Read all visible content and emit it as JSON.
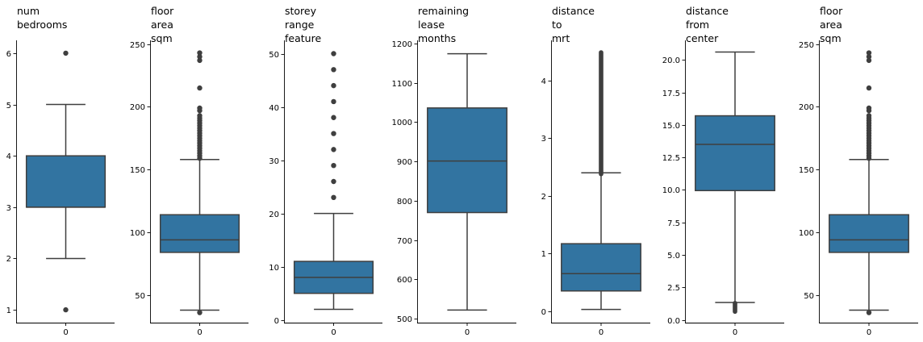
{
  "colors": {
    "box_fill": "#3274a1",
    "box_edge": "#3f3f3f",
    "axis": "#000000",
    "outlier": "#3f3f3f"
  },
  "chart_data": [
    {
      "type": "box",
      "title_lines": [
        "num",
        "bedrooms"
      ],
      "categories": [
        "0"
      ],
      "ylim": [
        0.75,
        6.25
      ],
      "yticks": [
        1,
        2,
        3,
        4,
        5,
        6
      ],
      "ytick_labels": [
        "1",
        "2",
        "3",
        "4",
        "5",
        "6"
      ],
      "box": {
        "whisker_low": 2,
        "q1": 3,
        "median": 3,
        "q3": 4,
        "whisker_high": 5
      },
      "outliers": [
        1,
        6
      ],
      "grid": false
    },
    {
      "type": "box",
      "title_lines": [
        "floor",
        "area",
        "sqm"
      ],
      "categories": [
        "0"
      ],
      "ylim": [
        28,
        253
      ],
      "yticks": [
        50,
        100,
        150,
        200,
        250
      ],
      "ytick_labels": [
        "50",
        "100",
        "150",
        "200",
        "250"
      ],
      "box": {
        "whisker_low": 38,
        "q1": 84,
        "median": 94,
        "q3": 114,
        "whisker_high": 158
      },
      "outliers": [
        36,
        159,
        161,
        163,
        165,
        167,
        169,
        171,
        173,
        175,
        177,
        179,
        181,
        183,
        185,
        187,
        189,
        191,
        193,
        197,
        199,
        215,
        237,
        240,
        243
      ],
      "grid": false
    },
    {
      "type": "box",
      "title_lines": [
        "storey",
        "range",
        "feature"
      ],
      "categories": [
        "0"
      ],
      "ylim": [
        -0.5,
        52.5
      ],
      "yticks": [
        0,
        10,
        20,
        30,
        40,
        50
      ],
      "ytick_labels": [
        "0",
        "10",
        "20",
        "30",
        "40",
        "50"
      ],
      "box": {
        "whisker_low": 2,
        "q1": 5,
        "median": 8,
        "q3": 11,
        "whisker_high": 20
      },
      "outliers": [
        23,
        26,
        29,
        32,
        35,
        38,
        41,
        44,
        47,
        50
      ],
      "grid": false
    },
    {
      "type": "box",
      "title_lines": [
        "remaining",
        "lease",
        "months"
      ],
      "categories": [
        "0"
      ],
      "ylim": [
        490,
        1208
      ],
      "yticks": [
        500,
        600,
        700,
        800,
        900,
        1000,
        1100,
        1200
      ],
      "ytick_labels": [
        "500",
        "600",
        "700",
        "800",
        "900",
        "1000",
        "1100",
        "1200"
      ],
      "box": {
        "whisker_low": 522,
        "q1": 770,
        "median": 901,
        "q3": 1036,
        "whisker_high": 1174
      },
      "outliers": [],
      "grid": false
    },
    {
      "type": "box",
      "title_lines": [
        "distance",
        "to",
        "mrt"
      ],
      "categories": [
        "0"
      ],
      "ylim": [
        -0.2,
        4.7
      ],
      "yticks": [
        0,
        1,
        2,
        3,
        4
      ],
      "ytick_labels": [
        "0",
        "1",
        "2",
        "3",
        "4"
      ],
      "box": {
        "whisker_low": 0.03,
        "q1": 0.35,
        "median": 0.65,
        "q3": 1.17,
        "whisker_high": 2.4
      },
      "outliers_range": [
        2.38,
        4.49
      ],
      "grid": false
    },
    {
      "type": "box",
      "title_lines": [
        "distance",
        "from",
        "center"
      ],
      "categories": [
        "0"
      ],
      "ylim": [
        -0.2,
        21.5
      ],
      "yticks": [
        0.0,
        2.5,
        5.0,
        7.5,
        10.0,
        12.5,
        15.0,
        17.5,
        20.0
      ],
      "ytick_labels": [
        "0.0",
        "2.5",
        "5.0",
        "7.5",
        "10.0",
        "12.5",
        "15.0",
        "17.5",
        "20.0"
      ],
      "box": {
        "whisker_low": 1.35,
        "q1": 9.95,
        "median": 13.5,
        "q3": 15.7,
        "whisker_high": 20.6
      },
      "outliers_range": [
        0.65,
        1.3
      ],
      "grid": false
    },
    {
      "type": "box",
      "title_lines": [
        "floor",
        "area",
        "sqm"
      ],
      "categories": [
        "0"
      ],
      "ylim": [
        28,
        253
      ],
      "yticks": [
        50,
        100,
        150,
        200,
        250
      ],
      "ytick_labels": [
        "50",
        "100",
        "150",
        "200",
        "250"
      ],
      "box": {
        "whisker_low": 38,
        "q1": 84,
        "median": 94,
        "q3": 114,
        "whisker_high": 158
      },
      "outliers": [
        36,
        159,
        161,
        163,
        165,
        167,
        169,
        171,
        173,
        175,
        177,
        179,
        181,
        183,
        185,
        187,
        189,
        191,
        193,
        197,
        199,
        215,
        237,
        240,
        243
      ],
      "grid": false
    }
  ]
}
